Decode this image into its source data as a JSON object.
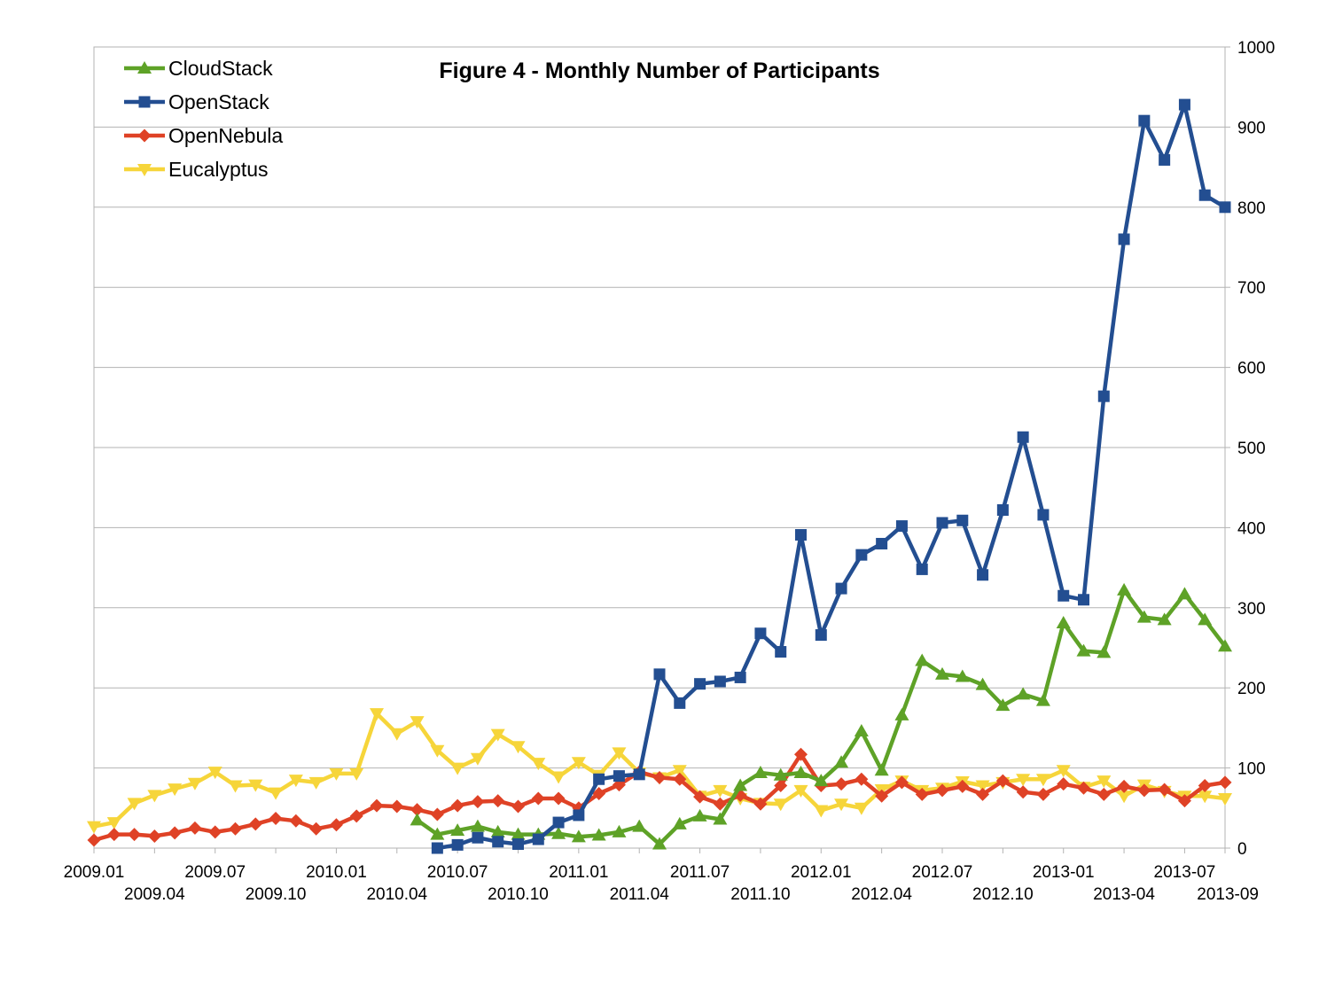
{
  "chart_data": {
    "type": "line",
    "title": "Figure 4 - Monthly Number of Participants",
    "xlabel": "",
    "ylabel": "",
    "ylim": [
      0,
      1000
    ],
    "yticks": [
      0,
      100,
      200,
      300,
      400,
      500,
      600,
      700,
      800,
      900,
      1000
    ],
    "ytick_labels": [
      "0",
      "100",
      "200",
      "300",
      "400",
      "500",
      "600",
      "700",
      "800",
      "900",
      "1000"
    ],
    "y_axis_side": "right",
    "grid": true,
    "legend_position": "top-left",
    "x_start": "2009.01",
    "x_count": 57,
    "x_tick_labels": [
      {
        "label": "2009.01",
        "index": 0,
        "row": 0
      },
      {
        "label": "2009.04",
        "index": 3,
        "row": 1
      },
      {
        "label": "2009.07",
        "index": 6,
        "row": 0
      },
      {
        "label": "2009.10",
        "index": 9,
        "row": 1
      },
      {
        "label": "2010.01",
        "index": 12,
        "row": 0
      },
      {
        "label": "2010.04",
        "index": 15,
        "row": 1
      },
      {
        "label": "2010.07",
        "index": 18,
        "row": 0
      },
      {
        "label": "2010.10",
        "index": 21,
        "row": 1
      },
      {
        "label": "2011.01",
        "index": 24,
        "row": 0
      },
      {
        "label": "2011.04",
        "index": 27,
        "row": 1
      },
      {
        "label": "2011.07",
        "index": 30,
        "row": 0
      },
      {
        "label": "2011.10",
        "index": 33,
        "row": 1
      },
      {
        "label": "2012.01",
        "index": 36,
        "row": 0
      },
      {
        "label": "2012.04",
        "index": 39,
        "row": 1
      },
      {
        "label": "2012.07",
        "index": 42,
        "row": 0
      },
      {
        "label": "2012.10",
        "index": 45,
        "row": 1
      },
      {
        "label": "2013-01",
        "index": 48,
        "row": 0
      },
      {
        "label": "2013-04",
        "index": 51,
        "row": 1
      },
      {
        "label": "2013-07",
        "index": 54,
        "row": 0
      },
      {
        "label": "2013-09",
        "index": 56,
        "row": 1
      }
    ],
    "series": [
      {
        "name": "CloudStack",
        "color": "#5ea227",
        "marker": "triangle-up",
        "start_index": 16,
        "values": [
          35,
          17,
          22,
          27,
          20,
          17,
          17,
          18,
          14,
          16,
          20,
          27,
          5,
          30,
          40,
          36,
          78,
          94,
          91,
          94,
          84,
          107,
          146,
          97,
          166,
          234,
          217,
          214,
          204,
          178,
          192,
          184,
          281,
          246,
          244,
          322,
          288,
          285,
          317,
          285,
          252
        ]
      },
      {
        "name": "OpenStack",
        "color": "#234e91",
        "marker": "square",
        "start_index": 17,
        "values": [
          0,
          4,
          13,
          8,
          5,
          11,
          32,
          41,
          86,
          90,
          92,
          217,
          181,
          205,
          208,
          213,
          268,
          245,
          391,
          266,
          324,
          366,
          380,
          402,
          348,
          406,
          409,
          341,
          422,
          513,
          416,
          315,
          310,
          564,
          760,
          908,
          859,
          928,
          815,
          800
        ]
      },
      {
        "name": "OpenNebula",
        "color": "#df4226",
        "marker": "diamond",
        "start_index": 0,
        "values": [
          10,
          17,
          17,
          15,
          19,
          25,
          20,
          24,
          30,
          37,
          34,
          24,
          29,
          40,
          53,
          52,
          48,
          42,
          53,
          58,
          59,
          52,
          62,
          62,
          50,
          68,
          79,
          95,
          88,
          86,
          64,
          55,
          66,
          55,
          78,
          117,
          78,
          80,
          86,
          65,
          82,
          67,
          72,
          77,
          67,
          84,
          70,
          67,
          80,
          75,
          67,
          77,
          72,
          73,
          59,
          78,
          82
        ]
      },
      {
        "name": "Eucalyptus",
        "color": "#f6d53a",
        "marker": "triangle-down",
        "start_index": 0,
        "values": [
          27,
          32,
          56,
          66,
          74,
          81,
          95,
          78,
          79,
          69,
          85,
          82,
          93,
          93,
          168,
          143,
          158,
          122,
          100,
          112,
          142,
          127,
          106,
          89,
          107,
          91,
          119,
          94,
          88,
          97,
          65,
          72,
          62,
          56,
          55,
          72,
          47,
          55,
          50,
          73,
          84,
          72,
          75,
          83,
          78,
          82,
          86,
          86,
          97,
          76,
          84,
          65,
          79,
          71,
          65,
          65,
          62
        ]
      }
    ]
  }
}
